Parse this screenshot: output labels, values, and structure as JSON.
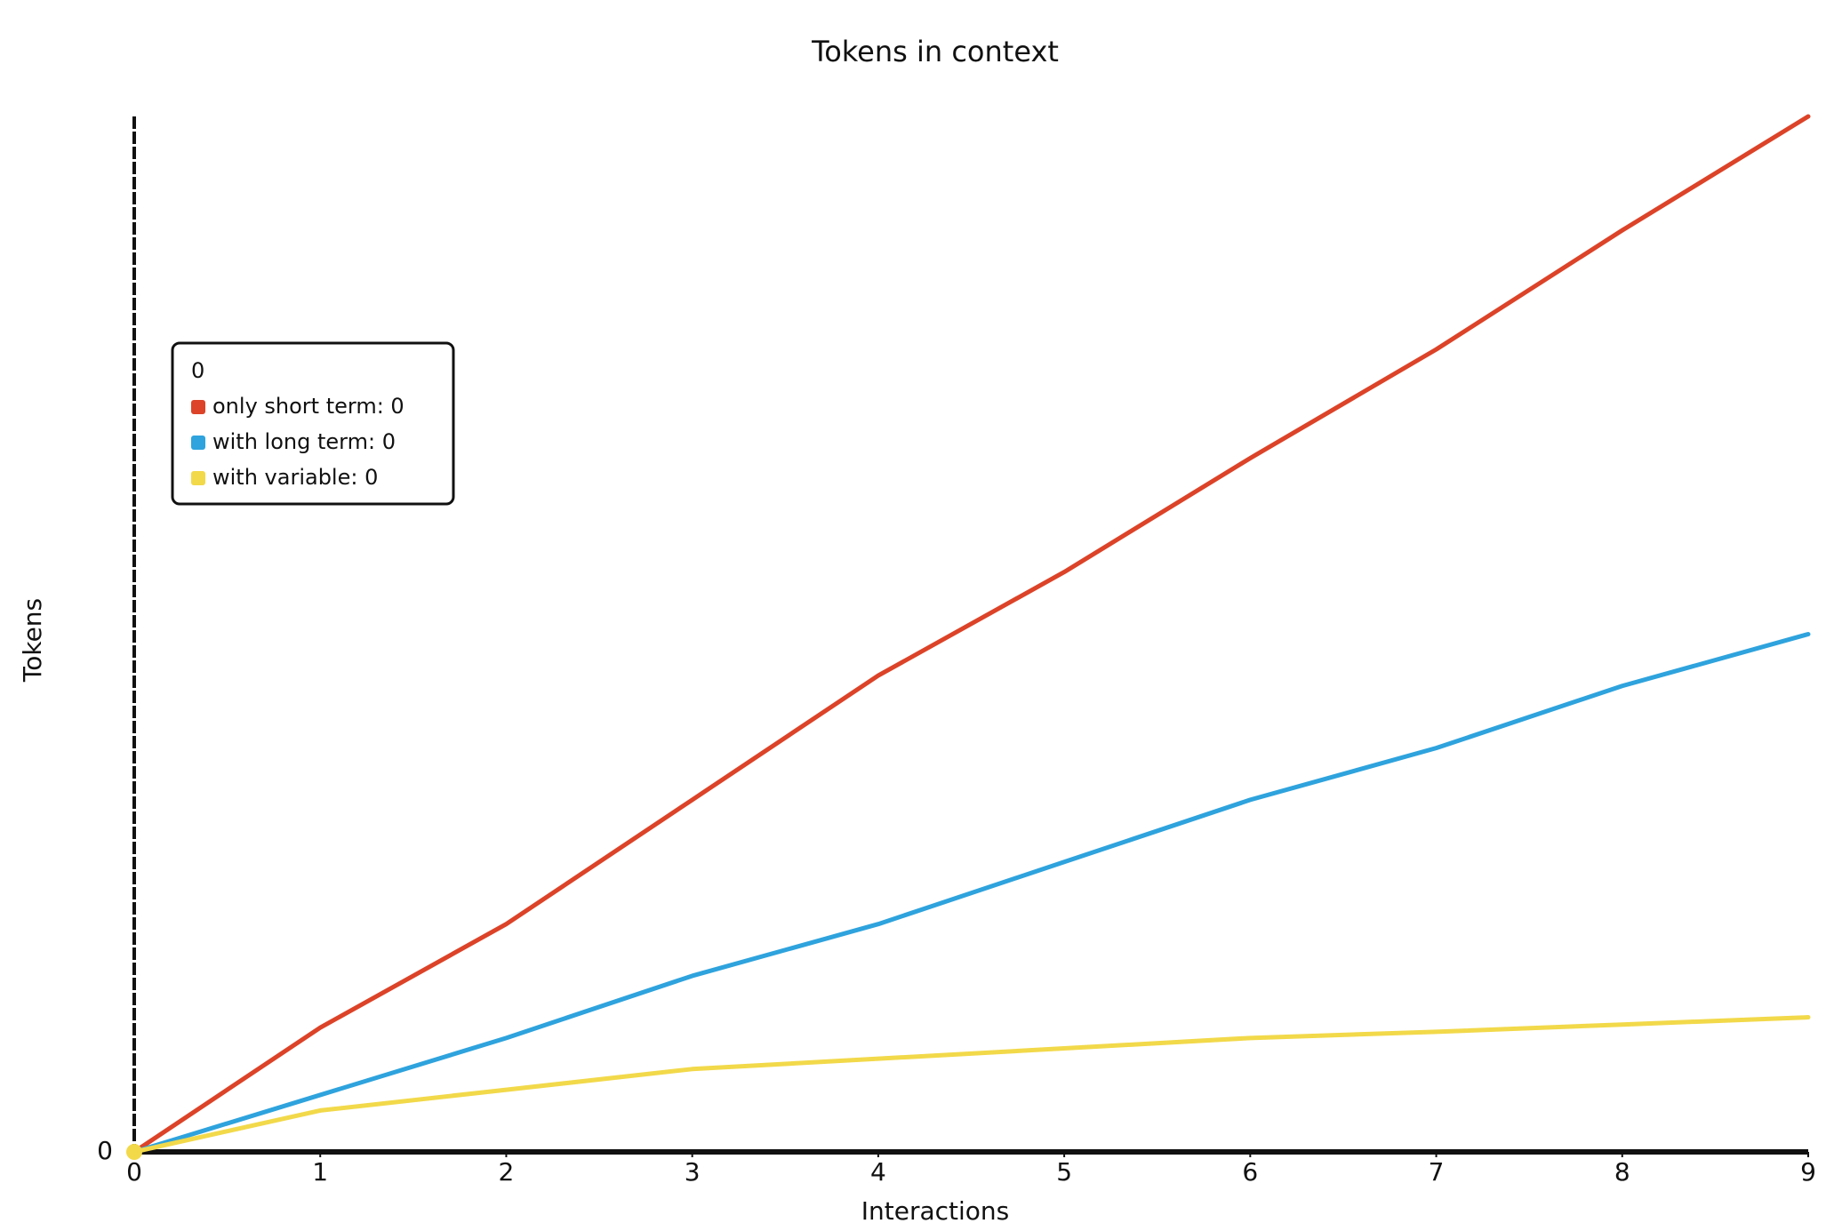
{
  "chart_data": {
    "type": "line",
    "title": "Tokens in context",
    "x_label": "Interactions",
    "y_label": "Tokens",
    "x": [
      0,
      1,
      2,
      3,
      4,
      5,
      6,
      7,
      8,
      9
    ],
    "series": [
      {
        "name": "only short term",
        "color": "#dc4328",
        "values": [
          0,
          12,
          22,
          34,
          46,
          56,
          67,
          77.5,
          89,
          100
        ]
      },
      {
        "name": "with long term",
        "color": "#2ea3dd",
        "values": [
          0,
          5.5,
          11,
          17,
          22,
          28,
          34,
          39,
          45,
          50
        ]
      },
      {
        "name": "with variable",
        "color": "#f2d94a",
        "values": [
          0,
          4,
          6,
          8,
          9,
          10,
          11,
          11.6,
          12.3,
          13
        ]
      }
    ],
    "xlim": [
      0,
      9
    ],
    "xticks": [
      0,
      1,
      2,
      3,
      4,
      5,
      6,
      7,
      8,
      9
    ],
    "ylim": [
      0,
      100
    ],
    "yticks": [
      0
    ],
    "tooltip": {
      "title": "0",
      "values": [
        0,
        0,
        0
      ]
    }
  }
}
